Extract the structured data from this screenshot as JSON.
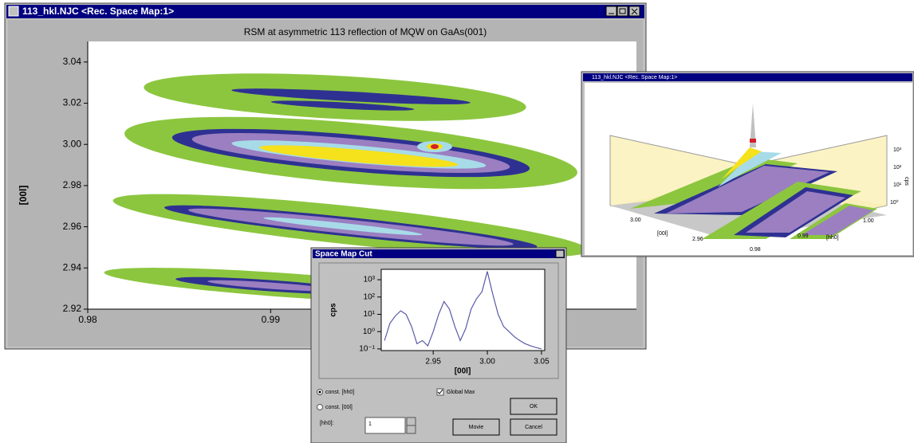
{
  "windows": {
    "main": {
      "title": "113_hkl.NJC <Rec. Space Map:1>"
    },
    "threed": {
      "title": "113_hkl.NJC <Rec. Space Map:1>",
      "labels": [
        "10³",
        "10²",
        "10¹",
        "10⁰",
        "cps",
        "3.00",
        "2.96",
        "[00l]",
        "1.00",
        "0.99",
        "0.98",
        "[hh0]"
      ]
    },
    "cut": {
      "title": "Space Map Cut",
      "radio_hh0": "const. [hh0]",
      "radio_00l": "const. [00l]",
      "field_label": "[hh0]:",
      "field_value": "1",
      "checkbox": "Global Max",
      "ok": "OK",
      "movie": "Movie",
      "cancel": "Cancel"
    }
  },
  "chart_data": [
    {
      "type": "contour",
      "title": "RSM at asymmetric 113 reflection of MQW on GaAs(001)",
      "y_label": "[00l]",
      "xlim": [
        0.98,
        1.01
      ],
      "xticks": [
        0.98,
        0.99
      ],
      "ylim": [
        2.92,
        3.05
      ],
      "yticks": [
        2.92,
        2.94,
        2.96,
        2.98,
        {
          "value": 3,
          "label": "3.00"
        },
        3.02,
        3.04
      ]
    },
    {
      "type": "line",
      "x_label": "[00l]",
      "y_label": "cps",
      "log_y": true,
      "xlim": [
        2.902,
        3.053
      ],
      "xticks": [
        2.95,
        {
          "value": 3,
          "label": "3.00"
        },
        3.05
      ],
      "ylim": [
        0.08,
        4000
      ],
      "yticks": [
        {
          "value": 0.1,
          "label": "10⁻¹"
        },
        {
          "value": 1,
          "label": "10⁰"
        },
        {
          "value": 10,
          "label": "10¹"
        },
        {
          "value": 100,
          "label": "10²"
        },
        {
          "value": 1000,
          "label": "10³"
        }
      ],
      "x": [
        2.905,
        2.91,
        2.915,
        2.92,
        2.925,
        2.93,
        2.935,
        2.94,
        2.945,
        2.95,
        2.955,
        2.96,
        2.965,
        2.97,
        2.975,
        2.98,
        2.985,
        2.99,
        2.995,
        3.0,
        3.005,
        3.01,
        3.015,
        3.02,
        3.025,
        3.03,
        3.035,
        3.04,
        3.045,
        3.05
      ],
      "series": [
        {
          "color": "#5a5aa8",
          "values": [
            0.3,
            3,
            8,
            16,
            10,
            2,
            0.2,
            0.3,
            0.15,
            1,
            10,
            55,
            20,
            2,
            0.3,
            1.5,
            20,
            80,
            200,
            3000,
            150,
            10,
            2,
            1,
            0.5,
            0.3,
            0.2,
            0.15,
            0.12,
            0.1
          ]
        }
      ]
    }
  ]
}
